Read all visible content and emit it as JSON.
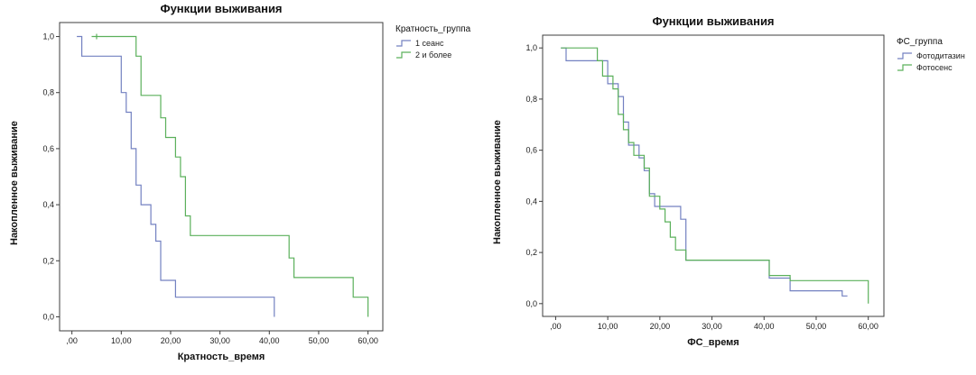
{
  "colors": {
    "axis": "#3c3c3c",
    "background": "#ffffff"
  },
  "chart_data": [
    {
      "type": "line",
      "subtype": "kaplan-meier-step-survival",
      "title": "Функции выживания",
      "xlabel": "Кратность_время",
      "ylabel": "Накопленное выживание",
      "legend_title": "Кратность_группа",
      "legend_position": "right",
      "grid": false,
      "xlim": [
        -2.5,
        63
      ],
      "ylim": [
        -0.05,
        1.05
      ],
      "xticks": [
        0,
        10,
        20,
        30,
        40,
        50,
        60
      ],
      "xtick_labels": [
        ",00",
        "10,00",
        "20,00",
        "30,00",
        "40,00",
        "50,00",
        "60,00"
      ],
      "yticks": [
        0.0,
        0.2,
        0.4,
        0.6,
        0.8,
        1.0
      ],
      "ytick_labels": [
        "0,0",
        "0,2",
        "0,4",
        "0,6",
        "0,8",
        "1,0"
      ],
      "series": [
        {
          "name": "1 сеанс",
          "color": "#7381c1",
          "steps": [
            [
              1,
              1.0
            ],
            [
              2,
              0.93
            ],
            [
              10,
              0.8
            ],
            [
              11,
              0.73
            ],
            [
              12,
              0.6
            ],
            [
              13,
              0.47
            ],
            [
              14,
              0.4
            ],
            [
              16,
              0.33
            ],
            [
              17,
              0.27
            ],
            [
              18,
              0.13
            ],
            [
              21,
              0.07
            ],
            [
              41,
              0.0
            ]
          ],
          "censors": []
        },
        {
          "name": "2 и более",
          "color": "#5bb05b",
          "steps": [
            [
              4,
              1.0
            ],
            [
              13,
              0.93
            ],
            [
              14,
              0.79
            ],
            [
              18,
              0.71
            ],
            [
              19,
              0.64
            ],
            [
              21,
              0.57
            ],
            [
              22,
              0.5
            ],
            [
              23,
              0.36
            ],
            [
              24,
              0.29
            ],
            [
              44,
              0.21
            ],
            [
              45,
              0.14
            ],
            [
              57,
              0.07
            ],
            [
              60,
              0.0
            ]
          ],
          "censors": [
            [
              5,
              1.0
            ]
          ]
        }
      ]
    },
    {
      "type": "line",
      "subtype": "kaplan-meier-step-survival",
      "title": "Функции выживания",
      "xlabel": "ФС_время",
      "ylabel": "Накопленное выживание",
      "legend_title": "ФС_группа",
      "legend_position": "right",
      "grid": false,
      "xlim": [
        -2.5,
        63
      ],
      "ylim": [
        -0.05,
        1.05
      ],
      "xticks": [
        0,
        10,
        20,
        30,
        40,
        50,
        60
      ],
      "xtick_labels": [
        ",00",
        "10,00",
        "20,00",
        "30,00",
        "40,00",
        "50,00",
        "60,00"
      ],
      "yticks": [
        0.0,
        0.2,
        0.4,
        0.6,
        0.8,
        1.0
      ],
      "ytick_labels": [
        "0,0",
        "0,2",
        "0,4",
        "0,6",
        "0,8",
        "1,0"
      ],
      "series": [
        {
          "name": "Фотодитазин",
          "color": "#7381c1",
          "steps": [
            [
              1,
              1.0
            ],
            [
              2,
              0.95
            ],
            [
              10,
              0.86
            ],
            [
              12,
              0.81
            ],
            [
              13,
              0.71
            ],
            [
              14,
              0.62
            ],
            [
              16,
              0.57
            ],
            [
              17,
              0.52
            ],
            [
              18,
              0.43
            ],
            [
              19,
              0.38
            ],
            [
              24,
              0.33
            ],
            [
              25,
              0.17
            ],
            [
              41,
              0.1
            ],
            [
              45,
              0.05
            ],
            [
              55,
              0.03
            ],
            [
              56,
              0.03
            ]
          ],
          "censors": []
        },
        {
          "name": "Фотосенс",
          "color": "#5bb05b",
          "steps": [
            [
              1,
              1.0
            ],
            [
              8,
              0.95
            ],
            [
              9,
              0.89
            ],
            [
              11,
              0.84
            ],
            [
              12,
              0.74
            ],
            [
              13,
              0.68
            ],
            [
              14,
              0.63
            ],
            [
              15,
              0.58
            ],
            [
              17,
              0.53
            ],
            [
              18,
              0.42
            ],
            [
              20,
              0.37
            ],
            [
              21,
              0.32
            ],
            [
              22,
              0.26
            ],
            [
              23,
              0.21
            ],
            [
              25,
              0.17
            ],
            [
              41,
              0.11
            ],
            [
              45,
              0.09
            ],
            [
              59,
              0.09
            ],
            [
              60,
              0.0
            ]
          ],
          "censors": []
        }
      ]
    }
  ]
}
